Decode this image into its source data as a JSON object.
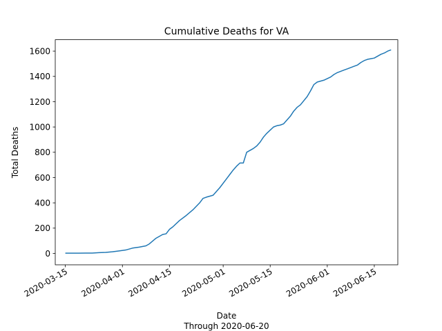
{
  "chart_data": {
    "type": "line",
    "title": "Cumulative Deaths for VA",
    "xlabel": "Date",
    "xlabel_sub": "Through 2020-06-20",
    "ylabel": "Total Deaths",
    "xlim": [
      "2020-03-12",
      "2020-06-22"
    ],
    "ylim": [
      -90,
      1690
    ],
    "x_ticks": [
      "2020-03-15",
      "2020-04-01",
      "2020-04-15",
      "2020-05-01",
      "2020-05-15",
      "2020-06-01",
      "2020-06-15"
    ],
    "y_ticks": [
      0,
      200,
      400,
      600,
      800,
      1000,
      1200,
      1400,
      1600
    ],
    "grid": false,
    "line_color": "#1f77b4",
    "series": [
      {
        "x": [
          "2020-03-15",
          "2020-03-17",
          "2020-03-19",
          "2020-03-21",
          "2020-03-23",
          "2020-03-25",
          "2020-03-27",
          "2020-03-29",
          "2020-03-31",
          "2020-04-02",
          "2020-04-04",
          "2020-04-06",
          "2020-04-08",
          "2020-04-09",
          "2020-04-11",
          "2020-04-13",
          "2020-04-14",
          "2020-04-15",
          "2020-04-16",
          "2020-04-18",
          "2020-04-20",
          "2020-04-22",
          "2020-04-24",
          "2020-04-25",
          "2020-04-26",
          "2020-04-28",
          "2020-04-30",
          "2020-05-02",
          "2020-05-03",
          "2020-05-04",
          "2020-05-05",
          "2020-05-06",
          "2020-05-07",
          "2020-05-08",
          "2020-05-10",
          "2020-05-11",
          "2020-05-12",
          "2020-05-13",
          "2020-05-14",
          "2020-05-15",
          "2020-05-16",
          "2020-05-17",
          "2020-05-18",
          "2020-05-19",
          "2020-05-20",
          "2020-05-21",
          "2020-05-22",
          "2020-05-23",
          "2020-05-24",
          "2020-05-26",
          "2020-05-27",
          "2020-05-28",
          "2020-05-29",
          "2020-05-31",
          "2020-06-02",
          "2020-06-03",
          "2020-06-04",
          "2020-06-05",
          "2020-06-06",
          "2020-06-07",
          "2020-06-08",
          "2020-06-09",
          "2020-06-10",
          "2020-06-11",
          "2020-06-12",
          "2020-06-13",
          "2020-06-14",
          "2020-06-15",
          "2020-06-16",
          "2020-06-17",
          "2020-06-18",
          "2020-06-19",
          "2020-06-20"
        ],
        "y": [
          2,
          2,
          2,
          3,
          3,
          6,
          8,
          13,
          20,
          27,
          42,
          50,
          60,
          75,
          120,
          150,
          155,
          190,
          210,
          260,
          300,
          345,
          400,
          435,
          445,
          460,
          520,
          590,
          625,
          660,
          690,
          715,
          715,
          800,
          830,
          850,
          880,
          920,
          950,
          975,
          1000,
          1010,
          1015,
          1025,
          1055,
          1085,
          1125,
          1155,
          1175,
          1240,
          1285,
          1335,
          1355,
          1370,
          1395,
          1415,
          1430,
          1440,
          1450,
          1460,
          1470,
          1480,
          1490,
          1510,
          1525,
          1535,
          1540,
          1545,
          1560,
          1575,
          1585,
          1600,
          1610
        ]
      }
    ]
  }
}
